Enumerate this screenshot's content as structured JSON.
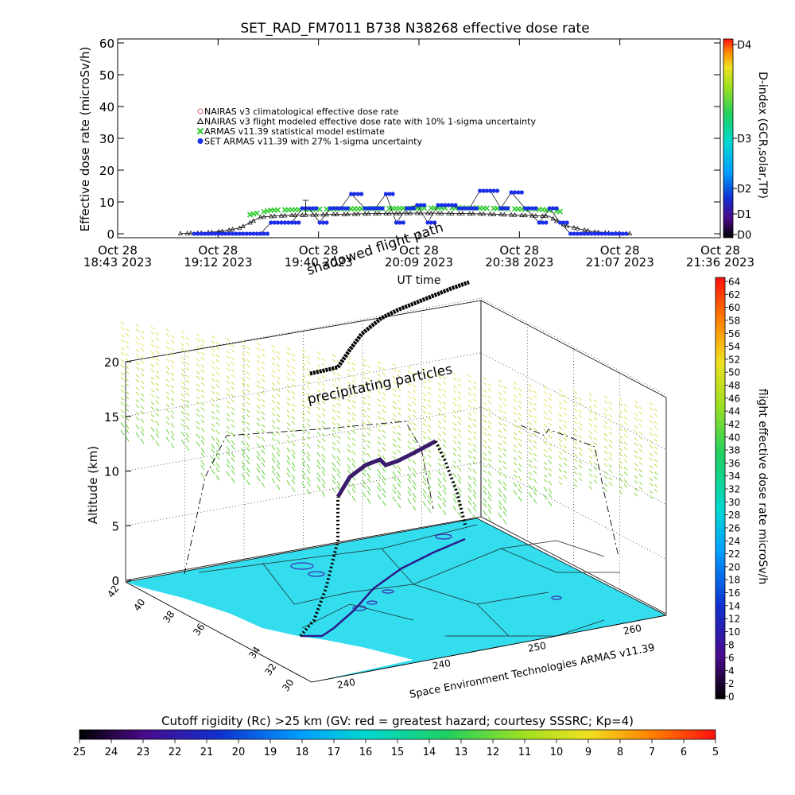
{
  "title": "SET_RAD_FM7011   B738 N38268 effective dose rate",
  "chart_data": [
    {
      "type": "scatter",
      "xlabel": "UT time",
      "ylabel": "Effective dose rate (microSv/h)",
      "ylim": [
        0,
        60
      ],
      "y_ticks": [
        "0",
        "10",
        "20",
        "30",
        "40",
        "50",
        "60"
      ],
      "x_ticks": [
        {
          "line1": "Oct 28",
          "line2": "18:43 2023"
        },
        {
          "line1": "Oct 28",
          "line2": "19:12 2023"
        },
        {
          "line1": "Oct 28",
          "line2": "19:40 2023"
        },
        {
          "line1": "Oct 28",
          "line2": "20:09 2023"
        },
        {
          "line1": "Oct 28",
          "line2": "20:38 2023"
        },
        {
          "line1": "Oct 28",
          "line2": "21:07 2023"
        },
        {
          "line1": "Oct 28",
          "line2": "21:36 2023"
        }
      ],
      "xlim": [
        "18:43",
        "21:36"
      ],
      "legend": [
        {
          "label": "NAIRAS v3 climatological effective dose rate",
          "color": "#e06060",
          "marker": "circle"
        },
        {
          "label": "NAIRAS v3 flight modeled effective dose rate with 10% 1-sigma uncertainty",
          "color": "#000000",
          "marker": "triangle"
        },
        {
          "label": "ARMAS v11.39 statistical model estimate",
          "color": "#2ecc2e",
          "marker": "cross"
        },
        {
          "label": "SET ARMAS v11.39 with 27% 1-sigma uncertainty",
          "color": "#1a2ee8",
          "marker": "dot"
        }
      ],
      "series": [
        {
          "name": "NAIRAS v3 flight modeled effective dose rate with 10% 1-sigma uncertainty",
          "x": [
            "19:01",
            "19:08",
            "19:13",
            "19:18",
            "19:21",
            "19:24",
            "19:27",
            "19:32",
            "19:40",
            "19:50",
            "20:00",
            "20:10",
            "20:20",
            "20:30",
            "20:40",
            "20:47",
            "20:49",
            "20:52",
            "20:56",
            "21:00",
            "21:05",
            "21:10"
          ],
          "y": [
            0.1,
            0.3,
            0.8,
            1.8,
            3.5,
            5.2,
            5.5,
            5.8,
            6.0,
            6.2,
            6.4,
            6.5,
            6.4,
            6.2,
            5.8,
            5.5,
            4.0,
            2.5,
            1.4,
            0.6,
            0.2,
            0.1
          ]
        },
        {
          "name": "ARMAS v11.39 statistical model estimate",
          "x": [
            "19:21",
            "19:27",
            "19:35",
            "19:45",
            "19:55",
            "20:05",
            "20:15",
            "20:25",
            "20:35",
            "20:45",
            "20:50"
          ],
          "y": [
            6.0,
            7.4,
            7.6,
            7.8,
            7.9,
            8.0,
            8.1,
            8.1,
            7.9,
            7.6,
            7.0
          ]
        },
        {
          "name": "SET ARMAS v11.39 with 27% 1-sigma uncertainty",
          "x": [
            "19:05",
            "19:20",
            "19:24",
            "19:27",
            "19:30",
            "19:33",
            "19:36",
            "19:38",
            "19:41",
            "19:44",
            "19:47",
            "19:50",
            "19:54",
            "19:57",
            "20:00",
            "20:03",
            "20:06",
            "20:09",
            "20:12",
            "20:15",
            "20:18",
            "20:21",
            "20:24",
            "20:27",
            "20:30",
            "20:33",
            "20:36",
            "20:40",
            "20:44",
            "20:47",
            "20:50",
            "20:53",
            "21:10"
          ],
          "y": [
            0,
            0,
            0,
            3.5,
            3.5,
            3.5,
            8,
            8,
            3.5,
            8,
            8,
            12.5,
            8,
            8,
            12.5,
            3.5,
            8,
            9,
            3.5,
            9,
            9,
            8,
            8,
            13.5,
            13.5,
            8,
            13,
            8,
            3.5,
            8,
            3.5,
            0,
            0
          ]
        }
      ],
      "colorbar": {
        "label": "D-index (GCR,solar,TP)",
        "ticks": [
          "D0",
          "D1",
          "D2",
          "D3",
          "D4"
        ]
      }
    },
    {
      "type": "scatter",
      "view": "3d",
      "zlabel": "Altitude (km)",
      "z_ticks": [
        "0",
        "5",
        "10",
        "15",
        "20"
      ],
      "lat_ticks": [
        "30",
        "32",
        "34",
        "36",
        "38",
        "40",
        "42"
      ],
      "lon_ticks": [
        "240",
        "240",
        "250",
        "260"
      ],
      "annotations": [
        "shadowed flight path",
        "precipitating particles"
      ],
      "credit": "Space Environment Technologies ARMAS v11.39",
      "colorbar": {
        "label": "flight effective dose rate microSv/h",
        "ticks": [
          "0",
          "2",
          "4",
          "6",
          "8",
          "10",
          "12",
          "14",
          "16",
          "18",
          "20",
          "22",
          "24",
          "26",
          "28",
          "30",
          "32",
          "34",
          "36",
          "38",
          "40",
          "42",
          "44",
          "46",
          "48",
          "50",
          "52",
          "54",
          "56",
          "58",
          "60",
          "62",
          "64"
        ]
      },
      "flight_altitude_km": [
        0.3,
        2.5,
        4.5,
        7.5,
        9.5,
        10.8,
        11.0,
        12.0,
        12.0,
        10.5,
        6.5,
        5.0
      ]
    }
  ],
  "bottom_colorbar": {
    "title": "Cutoff rigidity (Rc) >25 km (GV: red = greatest hazard; courtesy SSSRC; Kp=4)",
    "ticks": [
      "25",
      "24",
      "23",
      "22",
      "21",
      "20",
      "19",
      "18",
      "17",
      "16",
      "15",
      "14",
      "13",
      "12",
      "11",
      "10",
      "9",
      "8",
      "7",
      "6",
      "5"
    ]
  }
}
